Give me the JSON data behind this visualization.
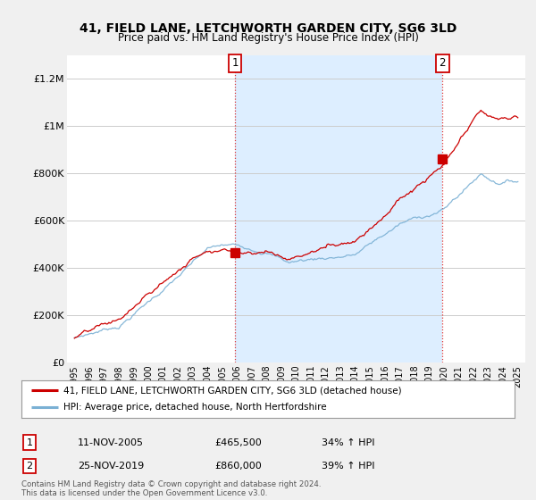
{
  "title": "41, FIELD LANE, LETCHWORTH GARDEN CITY, SG6 3LD",
  "subtitle": "Price paid vs. HM Land Registry's House Price Index (HPI)",
  "legend_line1": "41, FIELD LANE, LETCHWORTH GARDEN CITY, SG6 3LD (detached house)",
  "legend_line2": "HPI: Average price, detached house, North Hertfordshire",
  "annotation1_date": "11-NOV-2005",
  "annotation1_price": "£465,500",
  "annotation1_hpi": "34% ↑ HPI",
  "annotation2_date": "25-NOV-2019",
  "annotation2_price": "£860,000",
  "annotation2_hpi": "39% ↑ HPI",
  "footer": "Contains HM Land Registry data © Crown copyright and database right 2024.\nThis data is licensed under the Open Government Licence v3.0.",
  "price_color": "#cc0000",
  "hpi_color": "#7ab0d4",
  "shade_color": "#ddeeff",
  "annotation_color": "#cc0000",
  "background_color": "#f0f0f0",
  "plot_bg_color": "#ffffff",
  "grid_color": "#cccccc",
  "ylim": [
    0,
    1300000
  ],
  "yticks": [
    0,
    200000,
    400000,
    600000,
    800000,
    1000000,
    1200000
  ],
  "ytick_labels": [
    "£0",
    "£200K",
    "£400K",
    "£600K",
    "£800K",
    "£1M",
    "£1.2M"
  ],
  "sale1_x": 2005.87,
  "sale1_y": 465500,
  "sale2_x": 2019.9,
  "sale2_y": 860000,
  "xmin": 1995,
  "xmax": 2025
}
